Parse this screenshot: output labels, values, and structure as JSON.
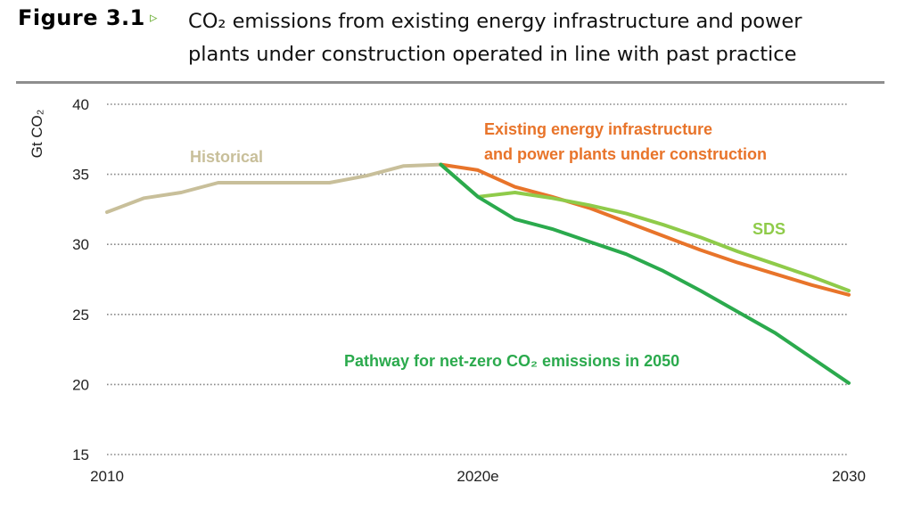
{
  "figure": {
    "label": "Figure 3.1",
    "marker": "▹",
    "title_line1": "CO₂ emissions from existing energy infrastructure and power",
    "title_line2": "plants under construction operated in line with past practice"
  },
  "colors": {
    "historical": "#c8bf9a",
    "existing": "#e8742a",
    "sds": "#8fcb4a",
    "netzero": "#2baa4d",
    "grid": "#888888"
  },
  "chart_data": {
    "type": "line",
    "ylabel": "Gt CO₂",
    "ylim": [
      15,
      40
    ],
    "yticks": [
      15,
      20,
      25,
      30,
      35,
      40
    ],
    "xlim": [
      2010,
      2030
    ],
    "xticks": [
      {
        "value": 2010,
        "label": "2010"
      },
      {
        "value": 2020,
        "label": "2020e"
      },
      {
        "value": 2030,
        "label": "2030"
      }
    ],
    "grid": "horizontal dotted",
    "series": [
      {
        "name": "Historical",
        "color_key": "historical",
        "points": [
          [
            2010,
            32.3
          ],
          [
            2011,
            33.3
          ],
          [
            2012,
            33.7
          ],
          [
            2013,
            34.4
          ],
          [
            2014,
            34.4
          ],
          [
            2015,
            34.4
          ],
          [
            2016,
            34.4
          ],
          [
            2017,
            34.9
          ],
          [
            2018,
            35.6
          ],
          [
            2019,
            35.7
          ]
        ]
      },
      {
        "name": "Existing energy infrastructure and power plants under construction",
        "color_key": "existing",
        "points": [
          [
            2019,
            35.7
          ],
          [
            2020,
            35.3
          ],
          [
            2021,
            34.1
          ],
          [
            2022,
            33.4
          ],
          [
            2023,
            32.6
          ],
          [
            2024,
            31.6
          ],
          [
            2025,
            30.6
          ],
          [
            2026,
            29.6
          ],
          [
            2027,
            28.7
          ],
          [
            2028,
            27.9
          ],
          [
            2029,
            27.1
          ],
          [
            2030,
            26.4
          ]
        ]
      },
      {
        "name": "SDS",
        "color_key": "sds",
        "points": [
          [
            2019,
            35.7
          ],
          [
            2020,
            33.4
          ],
          [
            2021,
            33.7
          ],
          [
            2022,
            33.3
          ],
          [
            2023,
            32.8
          ],
          [
            2024,
            32.2
          ],
          [
            2025,
            31.4
          ],
          [
            2026,
            30.5
          ],
          [
            2027,
            29.5
          ],
          [
            2028,
            28.6
          ],
          [
            2029,
            27.7
          ],
          [
            2030,
            26.7
          ]
        ]
      },
      {
        "name": "Pathway for net-zero CO₂ emissions in 2050",
        "color_key": "netzero",
        "points": [
          [
            2019,
            35.7
          ],
          [
            2020,
            33.4
          ],
          [
            2021,
            31.8
          ],
          [
            2022,
            31.1
          ],
          [
            2023,
            30.2
          ],
          [
            2024,
            29.3
          ],
          [
            2025,
            28.1
          ],
          [
            2026,
            26.7
          ],
          [
            2027,
            25.2
          ],
          [
            2028,
            23.7
          ],
          [
            2029,
            21.9
          ],
          [
            2030,
            20.1
          ]
        ]
      }
    ],
    "annotations": [
      {
        "text": "Historical",
        "color_key": "historical"
      },
      {
        "text": "Existing energy infrastructure",
        "color_key": "existing"
      },
      {
        "text": "and power plants under construction",
        "color_key": "existing"
      },
      {
        "text": "SDS",
        "color_key": "sds"
      },
      {
        "text": "Pathway for net-zero CO₂ emissions in 2050",
        "color_key": "netzero"
      }
    ]
  }
}
